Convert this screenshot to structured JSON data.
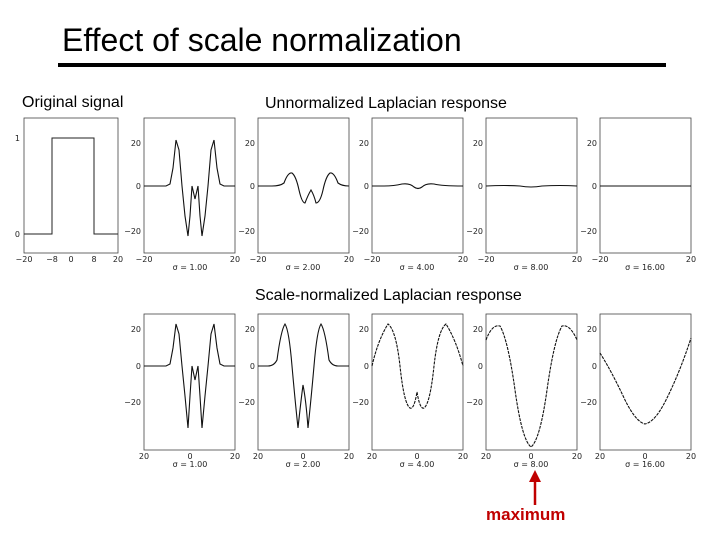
{
  "title": "Effect of scale normalization",
  "labels": {
    "original": "Original signal",
    "unnormalized": "Unnormalized Laplacian response",
    "normalized": "Scale-normalized Laplacian response",
    "maximum": "maximum"
  },
  "colors": {
    "accent": "#c00000"
  },
  "original_panel": {
    "x_ticks": [
      "−20",
      "−8",
      "0",
      "8",
      "20"
    ],
    "y_ticks": [
      "1",
      "0"
    ]
  },
  "unnormalized_panels": [
    {
      "caption": "σ = 1.00",
      "y_ticks": [
        "20",
        "0",
        "−20"
      ],
      "x_ticks": [
        "−20",
        "20"
      ]
    },
    {
      "caption": "σ = 2.00",
      "y_ticks": [
        "20",
        "0",
        "−20"
      ],
      "x_ticks": [
        "−20",
        "20"
      ]
    },
    {
      "caption": "σ = 4.00",
      "y_ticks": [
        "20",
        "0",
        "−20"
      ],
      "x_ticks": [
        "−20",
        "20"
      ]
    },
    {
      "caption": "σ = 8.00",
      "y_ticks": [
        "20",
        "0",
        "−20"
      ],
      "x_ticks": [
        "−20",
        "20"
      ]
    },
    {
      "caption": "σ = 16.00",
      "y_ticks": [
        "20",
        "0",
        "−20"
      ],
      "x_ticks": [
        "−20",
        "20"
      ]
    }
  ],
  "normalized_panels": [
    {
      "caption": "σ = 1.00",
      "y_ticks": [
        "20",
        "0",
        "−20"
      ],
      "x_ticks": [
        "20",
        "0",
        "20"
      ]
    },
    {
      "caption": "σ = 2.00",
      "y_ticks": [
        "20",
        "0",
        "−20"
      ],
      "x_ticks": [
        "20",
        "0",
        "20"
      ]
    },
    {
      "caption": "σ = 4.00",
      "y_ticks": [
        "20",
        "0",
        "−20"
      ],
      "x_ticks": [
        "20",
        "0",
        "20"
      ]
    },
    {
      "caption": "σ = 8.00",
      "y_ticks": [
        "20",
        "0",
        "−20"
      ],
      "x_ticks": [
        "20",
        "0",
        "20"
      ]
    },
    {
      "caption": "σ = 16.00",
      "y_ticks": [
        "20",
        "0",
        "−20"
      ],
      "x_ticks": [
        "20",
        "0",
        "20"
      ]
    }
  ]
}
